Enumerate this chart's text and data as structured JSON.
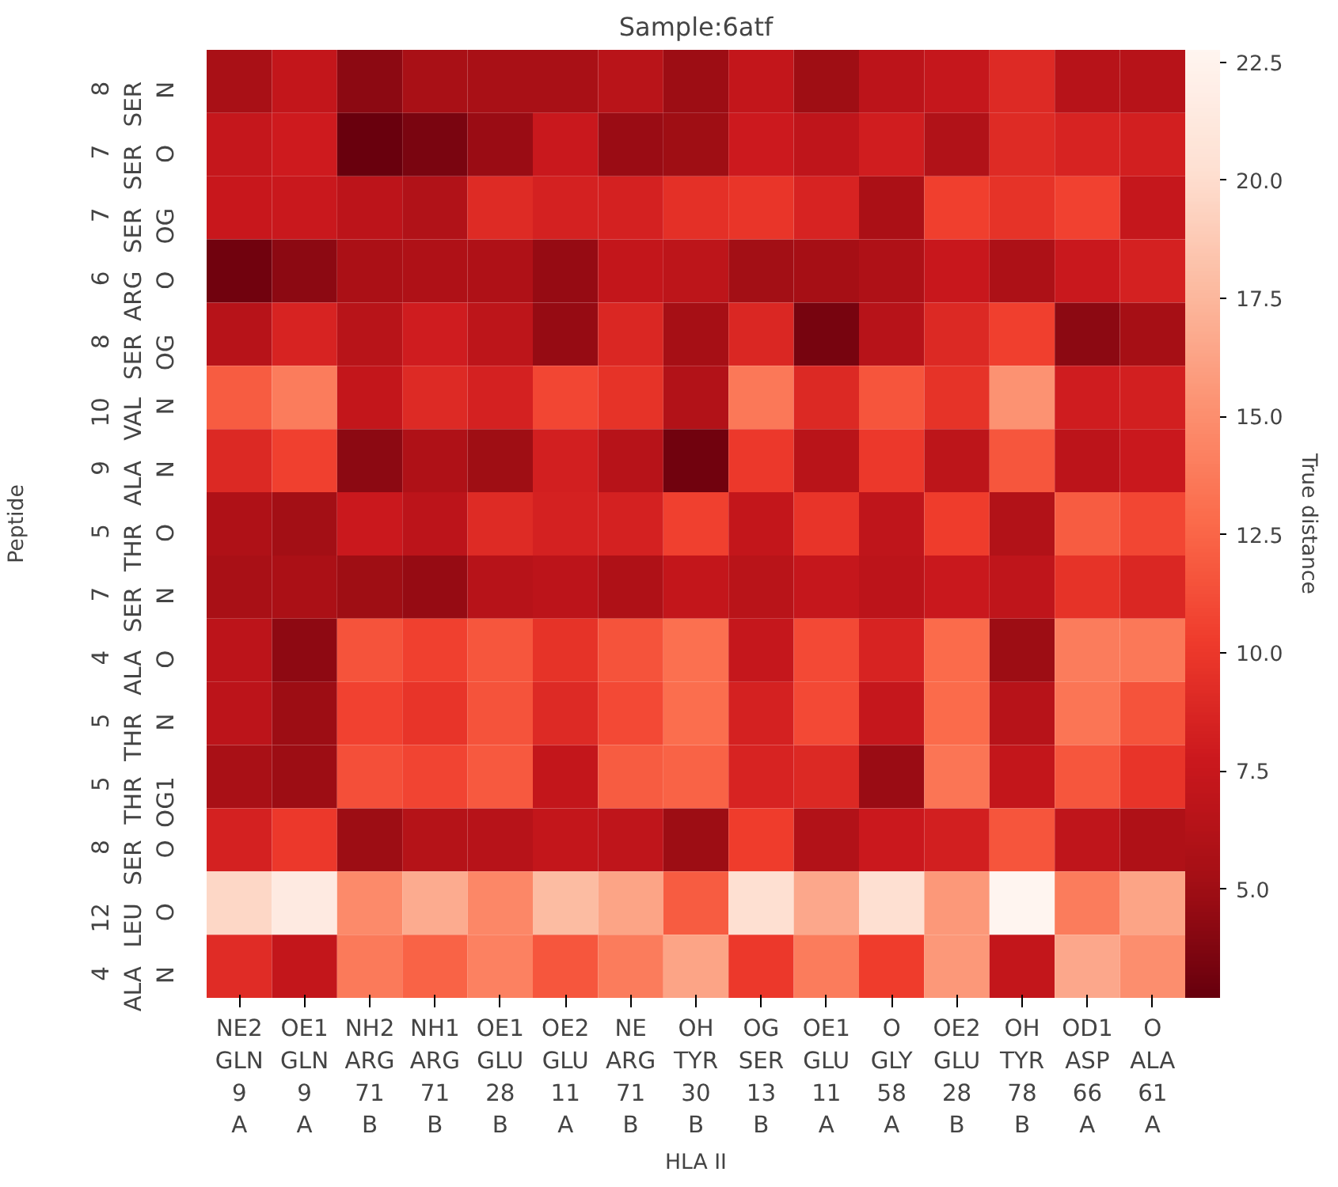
{
  "chart_data": {
    "type": "heatmap",
    "title": "Sample:6atf",
    "xlabel": "HLA II",
    "ylabel": "Peptide",
    "clabel": "True distance",
    "categories": [
      "NE2\nGLN\n9\nA",
      "OE1\nGLN\n9\nA",
      "NH2\nARG\n71\nB",
      "NH1\nARG\n71\nB",
      "OE1\nGLU\n28\nB",
      "OE2\nGLU\n11\nA",
      "NE\nARG\n71\nB",
      "OH\nTYR\n30\nB",
      "OG\nSER\n13\nB",
      "OE1\nGLU\n11\nA",
      "O\nGLY\n58\nA",
      "OE2\nGLU\n28\nB",
      "OH\nTYR\n78\nB",
      "OD1\nASP\n66\nA",
      "O\nALA\n61\nA"
    ],
    "y_categories": [
      "8\nSER\nN",
      "7\nSER\nO",
      "7\nSER\nOG",
      "6\nARG\nO",
      "8\nSER\nOG",
      "10\nVAL\nN",
      "9\nALA\nN",
      "5\nTHR\nO",
      "7\nSER\nN",
      "4\nALA\nO",
      "5\nTHR\nN",
      "5\nTHR\nOG1",
      "8\nSER\nO",
      "12\nLEU\nO",
      "4\nALA\nN"
    ],
    "cells": [
      [
        5.5,
        7.2,
        4.2,
        5.5,
        5.5,
        5.5,
        6.6,
        4.9,
        7.2,
        5.0,
        6.7,
        7.4,
        9.0,
        6.4,
        6.4
      ],
      [
        7.4,
        7.9,
        2.8,
        3.5,
        4.8,
        7.6,
        4.8,
        5.0,
        7.8,
        7.0,
        8.1,
        6.0,
        9.1,
        8.5,
        8.2
      ],
      [
        7.5,
        7.6,
        6.7,
        6.0,
        9.1,
        8.4,
        8.4,
        9.5,
        9.8,
        8.5,
        5.6,
        10.4,
        9.6,
        10.6,
        7.4
      ],
      [
        3.1,
        4.2,
        5.6,
        5.9,
        5.9,
        4.6,
        7.2,
        6.8,
        5.2,
        5.3,
        5.9,
        7.5,
        5.8,
        7.6,
        8.4
      ],
      [
        6.4,
        8.5,
        6.5,
        8.0,
        6.8,
        4.6,
        8.8,
        5.3,
        8.8,
        3.4,
        6.4,
        8.9,
        10.4,
        4.2,
        5.3
      ],
      [
        12.0,
        13.9,
        7.2,
        9.0,
        8.4,
        10.8,
        9.6,
        6.1,
        13.6,
        8.9,
        11.6,
        9.6,
        15.2,
        8.0,
        8.2
      ],
      [
        8.9,
        10.5,
        4.2,
        5.9,
        5.0,
        8.2,
        6.4,
        3.1,
        10.0,
        6.6,
        10.0,
        6.8,
        11.7,
        6.7,
        7.6
      ],
      [
        5.9,
        5.2,
        7.7,
        6.7,
        9.1,
        8.4,
        8.4,
        10.5,
        7.2,
        9.7,
        7.0,
        10.3,
        6.1,
        12.0,
        10.8
      ],
      [
        5.5,
        5.6,
        5.0,
        4.6,
        6.4,
        6.7,
        5.9,
        7.2,
        6.6,
        7.4,
        6.7,
        7.6,
        7.0,
        9.6,
        8.8
      ],
      [
        6.7,
        4.3,
        11.5,
        10.5,
        11.7,
        9.6,
        11.5,
        13.1,
        7.4,
        11.0,
        8.5,
        12.8,
        4.9,
        13.9,
        13.6
      ],
      [
        6.7,
        4.9,
        10.6,
        9.7,
        11.5,
        9.0,
        11.0,
        13.0,
        8.4,
        11.0,
        7.4,
        12.8,
        6.4,
        13.4,
        11.5
      ],
      [
        5.5,
        4.9,
        11.3,
        10.7,
        11.8,
        7.2,
        12.0,
        12.4,
        8.5,
        8.9,
        4.8,
        13.4,
        7.2,
        11.7,
        9.7
      ],
      [
        8.4,
        10.0,
        4.9,
        6.3,
        6.4,
        7.2,
        7.0,
        4.9,
        10.3,
        6.1,
        7.7,
        8.2,
        11.6,
        7.0,
        5.9
      ],
      [
        19.6,
        21.5,
        14.7,
        16.8,
        14.6,
        17.8,
        16.3,
        12.0,
        20.2,
        16.5,
        20.2,
        15.6,
        22.7,
        13.9,
        16.3
      ],
      [
        9.2,
        7.2,
        13.7,
        12.4,
        14.2,
        11.7,
        13.9,
        16.3,
        10.0,
        13.9,
        10.3,
        15.6,
        7.2,
        16.5,
        15.0
      ]
    ],
    "clim": [
      2.7,
      22.76
    ],
    "cticks": [
      {
        "value": 5,
        "label": "5.0"
      },
      {
        "value": 7.5,
        "label": "7.5"
      },
      {
        "value": 10,
        "label": "10.0"
      },
      {
        "value": 12.5,
        "label": "12.5"
      },
      {
        "value": 15,
        "label": "15.0"
      },
      {
        "value": 17.5,
        "label": "17.5"
      },
      {
        "value": 20,
        "label": "20.0"
      },
      {
        "value": 22.5,
        "label": "22.5"
      }
    ]
  }
}
